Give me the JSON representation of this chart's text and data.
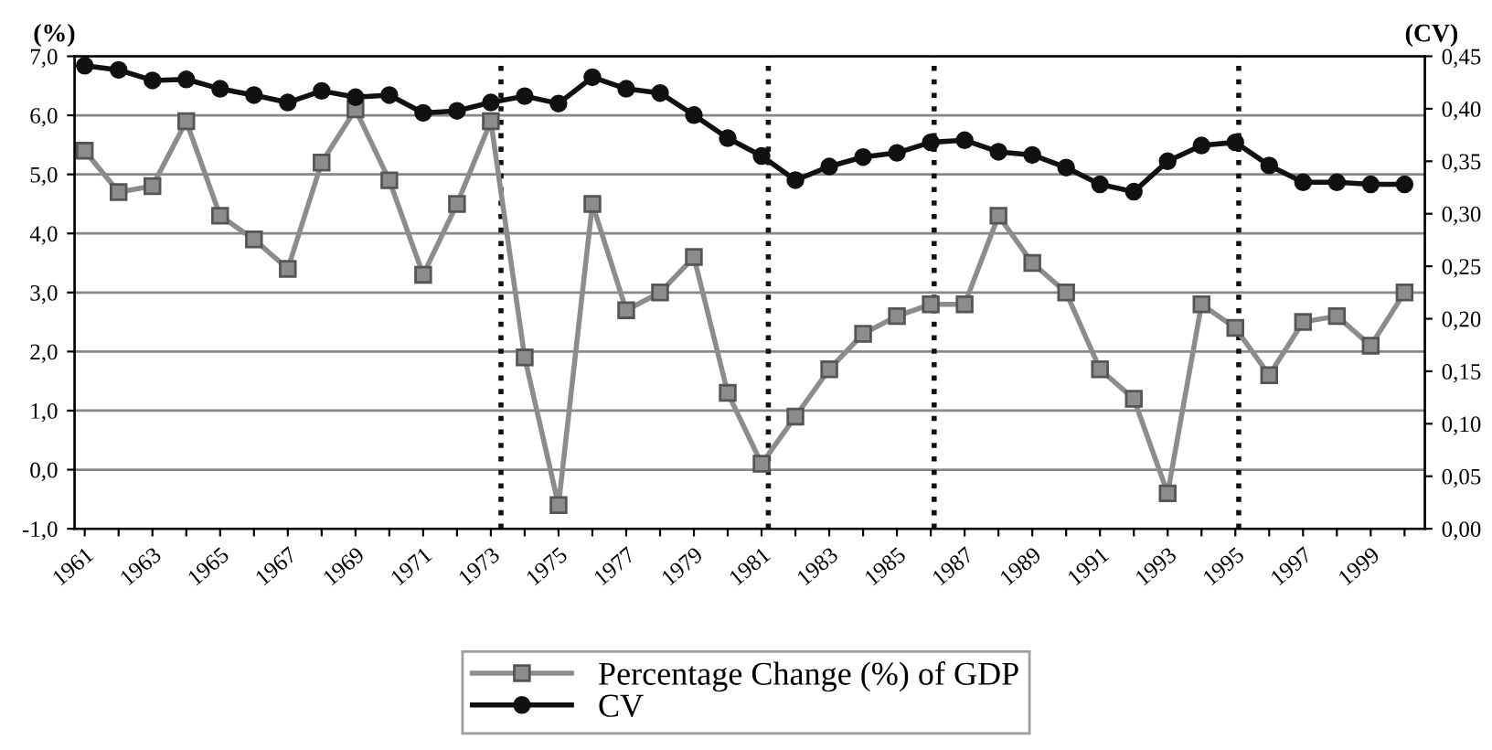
{
  "chart_data": {
    "type": "line",
    "x": [
      1961,
      1962,
      1963,
      1964,
      1965,
      1966,
      1967,
      1968,
      1969,
      1970,
      1971,
      1972,
      1973,
      1974,
      1975,
      1976,
      1977,
      1978,
      1979,
      1980,
      1981,
      1982,
      1983,
      1984,
      1985,
      1986,
      1987,
      1988,
      1989,
      1990,
      1991,
      1992,
      1993,
      1994,
      1995,
      1996,
      1997,
      1998,
      1999,
      2000
    ],
    "series": [
      {
        "name": "Percentage Change (%) of GDP",
        "color": "#8c8c8c",
        "marker": "square",
        "axis": "y",
        "values": [
          5.4,
          4.7,
          4.8,
          5.9,
          4.3,
          3.9,
          3.4,
          5.2,
          6.1,
          4.9,
          3.3,
          4.5,
          5.9,
          1.9,
          -0.6,
          4.5,
          2.7,
          3.0,
          3.6,
          1.3,
          0.1,
          0.9,
          1.7,
          2.3,
          2.6,
          2.8,
          2.8,
          4.3,
          3.5,
          3.0,
          1.7,
          1.2,
          -0.4,
          2.8,
          2.4,
          1.6,
          2.5,
          2.6,
          2.1,
          3.0
        ]
      },
      {
        "name": "CV",
        "color": "#111111",
        "marker": "circle",
        "axis": "y2",
        "values": [
          0.441,
          0.437,
          0.427,
          0.428,
          0.419,
          0.413,
          0.406,
          0.417,
          0.411,
          0.413,
          0.396,
          0.398,
          0.406,
          0.412,
          0.405,
          0.43,
          0.419,
          0.415,
          0.394,
          0.372,
          0.355,
          0.332,
          0.345,
          0.354,
          0.358,
          0.368,
          0.37,
          0.359,
          0.356,
          0.344,
          0.328,
          0.321,
          0.35,
          0.365,
          0.368,
          0.346,
          0.33,
          0.33,
          0.328,
          0.328
        ]
      }
    ],
    "ylabel": "(%)",
    "y2label": "(CV)",
    "xlim": [
      1960.7,
      2000.6
    ],
    "xticks": [
      1961,
      {
        "value": 1962,
        "label": null
      },
      1963,
      {
        "value": 1964,
        "label": null
      },
      1965,
      {
        "value": 1966,
        "label": null
      },
      1967,
      {
        "value": 1968,
        "label": null
      },
      1969,
      {
        "value": 1970,
        "label": null
      },
      1971,
      {
        "value": 1972,
        "label": null
      },
      1973,
      {
        "value": 1974,
        "label": null
      },
      1975,
      {
        "value": 1976,
        "label": null
      },
      1977,
      {
        "value": 1978,
        "label": null
      },
      1979,
      {
        "value": 1980,
        "label": null
      },
      1981,
      {
        "value": 1982,
        "label": null
      },
      1983,
      {
        "value": 1984,
        "label": null
      },
      1985,
      {
        "value": 1986,
        "label": null
      },
      1987,
      {
        "value": 1988,
        "label": null
      },
      1989,
      {
        "value": 1990,
        "label": null
      },
      1991,
      {
        "value": 1992,
        "label": null
      },
      1993,
      {
        "value": 1994,
        "label": null
      },
      1995,
      {
        "value": 1996,
        "label": null
      },
      1997,
      {
        "value": 1998,
        "label": null
      },
      1999,
      {
        "value": 2000,
        "label": null
      }
    ],
    "ylim": [
      -1,
      7
    ],
    "yticks": [
      {
        "value": -1,
        "label": "-1,0"
      },
      {
        "value": 0,
        "label": "0,0"
      },
      {
        "value": 1,
        "label": "1,0"
      },
      {
        "value": 2,
        "label": "2,0"
      },
      {
        "value": 3,
        "label": "3,0"
      },
      {
        "value": 4,
        "label": "4,0"
      },
      {
        "value": 5,
        "label": "5,0"
      },
      {
        "value": 6,
        "label": "6,0"
      },
      {
        "value": 7,
        "label": "7,0"
      }
    ],
    "y2lim": [
      0,
      0.45
    ],
    "y2ticks": [
      {
        "value": 0,
        "label": "0,00"
      },
      {
        "value": 0.05,
        "label": "0,05"
      },
      {
        "value": 0.1,
        "label": "0,10"
      },
      {
        "value": 0.15,
        "label": "0,15"
      },
      {
        "value": 0.2,
        "label": "0,20"
      },
      {
        "value": 0.25,
        "label": "0,25"
      },
      {
        "value": 0.3,
        "label": "0,30"
      },
      {
        "value": 0.35,
        "label": "0,35"
      },
      {
        "value": 0.4,
        "label": "0,40"
      },
      {
        "value": 0.45,
        "label": "0,45"
      }
    ],
    "ref_lines": [
      {
        "axis": "x",
        "value": 1973.3,
        "color": "#111111",
        "line_style": "dotted"
      },
      {
        "axis": "x",
        "value": 1981.2,
        "color": "#111111",
        "line_style": "dotted"
      },
      {
        "axis": "x",
        "value": 1986.1,
        "color": "#111111",
        "line_style": "dotted"
      },
      {
        "axis": "x",
        "value": 1995.1,
        "color": "#111111",
        "line_style": "dotted"
      }
    ],
    "grid": "y",
    "legend": "bottom",
    "line_style": "solid"
  }
}
